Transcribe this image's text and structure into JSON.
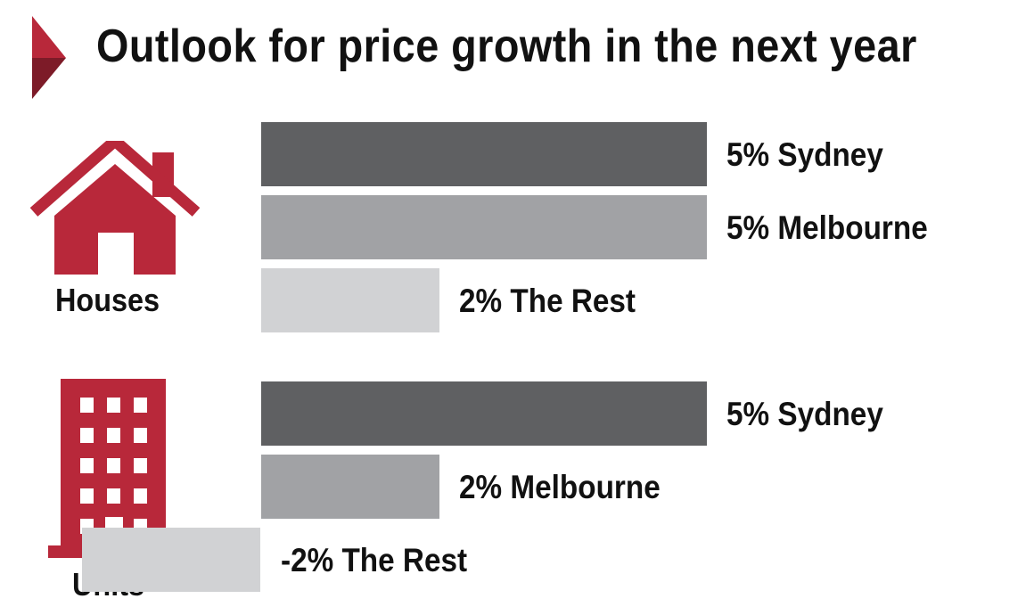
{
  "title": "Outlook for price growth in the next year",
  "colors": {
    "accent": "#b8283a",
    "accent_dark": "#7d1b28",
    "sydney": "#5f6062",
    "melbourne": "#a1a2a5",
    "rest": "#d1d2d4",
    "text": "#111111"
  },
  "icons": {
    "chevron": "chevron-right-icon",
    "house": "house-icon",
    "building": "building-icon"
  },
  "chart_data": {
    "type": "bar",
    "orientation": "horizontal",
    "title": "Outlook for price growth in the next year",
    "unit": "%",
    "xlim": [
      -2,
      5
    ],
    "groups": [
      {
        "label": "Houses",
        "bars": [
          {
            "category": "Sydney",
            "value": 5,
            "label": "5% Sydney",
            "color_key": "sydney"
          },
          {
            "category": "Melbourne",
            "value": 5,
            "label": "5% Melbourne",
            "color_key": "melbourne"
          },
          {
            "category": "The Rest",
            "value": 2,
            "label": "2% The Rest",
            "color_key": "rest"
          }
        ]
      },
      {
        "label": "Units",
        "bars": [
          {
            "category": "Sydney",
            "value": 5,
            "label": "5% Sydney",
            "color_key": "sydney"
          },
          {
            "category": "Melbourne",
            "value": 2,
            "label": "2% Melbourne",
            "color_key": "melbourne"
          },
          {
            "category": "The Rest",
            "value": -2,
            "label": "-2% The Rest",
            "color_key": "rest"
          }
        ]
      }
    ]
  }
}
